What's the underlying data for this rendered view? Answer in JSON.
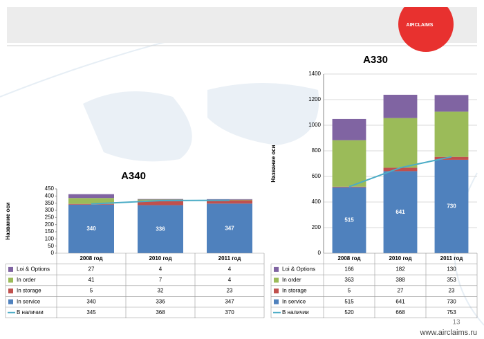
{
  "logo": "AIRCLAIMS",
  "page_number": "13",
  "footer": "www.airclaims.ru",
  "chart_data": [
    {
      "type": "bar",
      "stacked": true,
      "title": "A340",
      "y_label": "Название оси",
      "categories": [
        "2008 год",
        "2010 год",
        "2011 год"
      ],
      "ylim": [
        0,
        450
      ],
      "yticks": [
        0,
        50,
        100,
        150,
        200,
        250,
        300,
        350,
        400,
        450
      ],
      "grid": false,
      "series": [
        {
          "name": "Loi & Options",
          "color": "#8064a2",
          "values": [
            27,
            4,
            4
          ]
        },
        {
          "name": "In order",
          "color": "#9bbb59",
          "values": [
            41,
            7,
            4
          ]
        },
        {
          "name": "In storage",
          "color": "#c0504d",
          "values": [
            5,
            32,
            23
          ]
        },
        {
          "name": "In service",
          "color": "#4f81bd",
          "values": [
            340,
            336,
            347
          ],
          "data_labels": true
        },
        {
          "name": "В наличии",
          "color": "#4bacc6",
          "type": "line",
          "values": [
            345,
            368,
            370
          ]
        }
      ]
    },
    {
      "type": "bar",
      "stacked": true,
      "title": "A330",
      "y_label": "Название оси",
      "categories": [
        "2008 год",
        "2010 год",
        "2011 год"
      ],
      "ylim": [
        0,
        1400
      ],
      "yticks": [
        0,
        200,
        400,
        600,
        800,
        1000,
        1200,
        1400
      ],
      "grid": true,
      "series": [
        {
          "name": "Loi & Options",
          "color": "#8064a2",
          "values": [
            166,
            182,
            130
          ]
        },
        {
          "name": "In order",
          "color": "#9bbb59",
          "values": [
            363,
            388,
            353
          ]
        },
        {
          "name": "In storage",
          "color": "#c0504d",
          "values": [
            5,
            27,
            23
          ]
        },
        {
          "name": "In service",
          "color": "#4f81bd",
          "values": [
            515,
            641,
            730
          ],
          "data_labels": true
        },
        {
          "name": "В наличии",
          "color": "#4bacc6",
          "type": "line",
          "values": [
            520,
            668,
            753
          ]
        }
      ]
    }
  ]
}
